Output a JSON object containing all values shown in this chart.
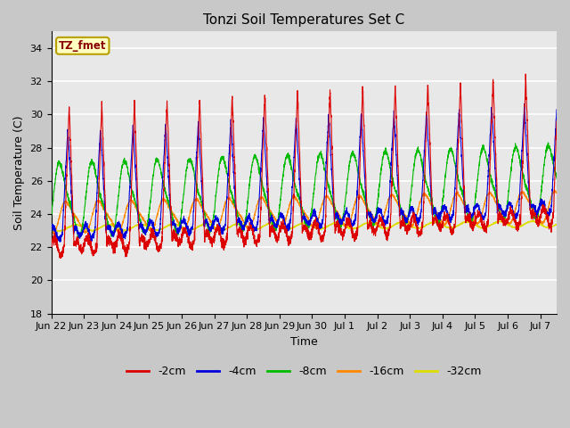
{
  "title": "Tonzi Soil Temperatures Set C",
  "xlabel": "Time",
  "ylabel": "Soil Temperature (C)",
  "ylim": [
    18,
    35
  ],
  "yticks": [
    18,
    20,
    22,
    24,
    26,
    28,
    30,
    32,
    34
  ],
  "annotation_text": "TZ_fmet",
  "annotation_color": "#8B0000",
  "annotation_bg": "#FFFFC0",
  "annotation_border": "#B8A000",
  "colors": {
    "-2cm": "#DD0000",
    "-4cm": "#0000DD",
    "-8cm": "#00BB00",
    "-16cm": "#FF8800",
    "-32cm": "#DDDD00"
  },
  "legend_labels": [
    "-2cm",
    "-4cm",
    "-8cm",
    "-16cm",
    "-32cm"
  ],
  "num_days": 15.5,
  "samples_per_day": 240,
  "background_color": "#E8E8E8",
  "plot_bg_color": "#E0E0E0",
  "grid_color": "#FFFFFF",
  "xtick_labels": [
    "Jun 22",
    "Jun 23",
    "Jun 24",
    "Jun 25",
    "Jun 26",
    "Jun 27",
    "Jun 28",
    "Jun 29",
    "Jun 30",
    "Jul 1",
    "Jul 2",
    "Jul 3",
    "Jul 4",
    "Jul 5",
    "Jul 6",
    "Jul 7"
  ],
  "xtick_positions": [
    0,
    1,
    2,
    3,
    4,
    5,
    6,
    7,
    8,
    9,
    10,
    11,
    12,
    13,
    14,
    15
  ]
}
